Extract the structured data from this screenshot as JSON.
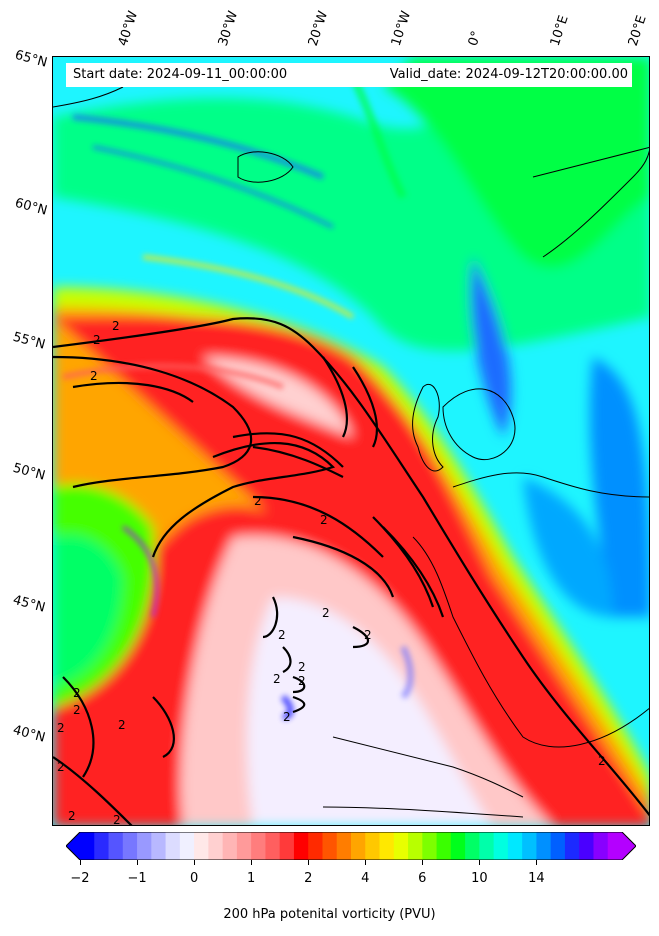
{
  "header": {
    "start_date": "Start date: 2024-09-11_00:00:00",
    "valid_date": "Valid_date: 2024-09-12T20:00:00.00"
  },
  "axes": {
    "lat_labels": [
      "65°N",
      "60°N",
      "55°N",
      "50°N",
      "45°N",
      "40°N"
    ],
    "lon_labels": [
      "40°W",
      "30°W",
      "20°W",
      "10°W",
      "0°",
      "10°E",
      "20°E"
    ]
  },
  "colorbar": {
    "label": "200 hPa potenital vorticity (PVU)",
    "ticks": [
      "−2",
      "−1",
      "0",
      "1",
      "2",
      "4",
      "6",
      "10",
      "14"
    ],
    "colors": [
      "#0000ff",
      "#2a2aff",
      "#5555ff",
      "#7777ff",
      "#9999ff",
      "#b8b8ff",
      "#dcdcff",
      "#f0f0ff",
      "#ffe8e8",
      "#ffd0d0",
      "#ffb5b5",
      "#ff9a9a",
      "#ff7d7d",
      "#ff5f5f",
      "#ff3a3a",
      "#ff0000",
      "#ff2a00",
      "#ff5500",
      "#ff7d00",
      "#ffa500",
      "#ffc800",
      "#ffe800",
      "#e8ff00",
      "#b8ff00",
      "#7dff00",
      "#3aff00",
      "#00ff1c",
      "#00ff66",
      "#00ffaa",
      "#00ffe0",
      "#00e8ff",
      "#00c0ff",
      "#0090ff",
      "#0060ff",
      "#1c2aff",
      "#4a00ff",
      "#8800ff",
      "#b400ff"
    ],
    "extend_low_color": "#0000ff",
    "extend_high_color": "#b400ff"
  },
  "contour_labels": [
    "2",
    "2",
    "2",
    "2",
    "2",
    "2",
    "2",
    "2",
    "2",
    "2",
    "2",
    "2",
    "2",
    "2",
    "2",
    "2",
    "2",
    "2",
    "2",
    "2"
  ]
}
